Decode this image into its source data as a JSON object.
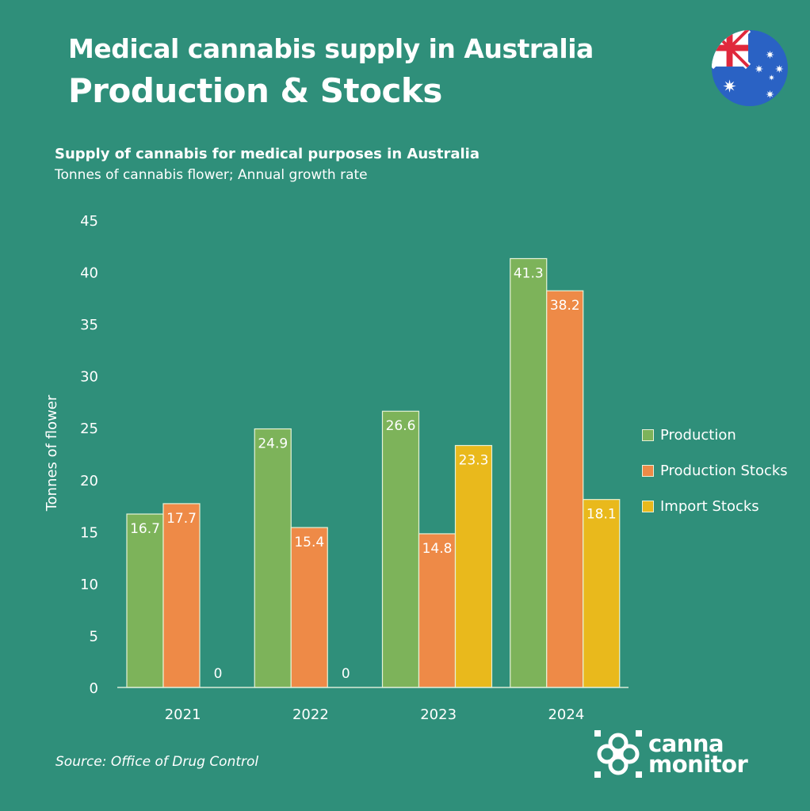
{
  "header": {
    "title": "Medical cannabis supply in Australia",
    "subtitle": "Production & Stocks",
    "flag_icon": "australia-flag-icon"
  },
  "chart_header": {
    "title": "Supply of cannabis for medical purposes in Australia",
    "subtitle": "Tonnes of cannabis flower; Annual growth rate"
  },
  "colors": {
    "background": "#2f8f7a",
    "production": "#7db35a",
    "production_stocks": "#ee8a47",
    "import_stocks": "#e9b91c",
    "text": "#ffffff"
  },
  "chart_data": {
    "type": "bar",
    "title": "Supply of cannabis for medical purposes in Australia",
    "subtitle": "Tonnes of cannabis flower; Annual growth rate",
    "xlabel": "",
    "ylabel": "Tonnes of flower",
    "ylim": [
      0,
      45
    ],
    "yticks": [
      0,
      5,
      10,
      15,
      20,
      25,
      30,
      35,
      40,
      45
    ],
    "grid": false,
    "legend_position": "right",
    "categories": [
      "2021",
      "2022",
      "2023",
      "2024"
    ],
    "series": [
      {
        "name": "Production",
        "color": "#7db35a",
        "values": [
          16.7,
          24.9,
          26.6,
          41.3
        ],
        "labels": [
          "16.7",
          "24.9",
          "26.6",
          "41.3"
        ]
      },
      {
        "name": "Production Stocks",
        "color": "#ee8a47",
        "values": [
          17.7,
          15.4,
          14.8,
          38.2
        ],
        "labels": [
          "17.7",
          "15.4",
          "14.8",
          "38.2"
        ]
      },
      {
        "name": "Import Stocks",
        "color": "#e9b91c",
        "values": [
          0,
          0,
          23.3,
          18.1
        ],
        "labels": [
          "0",
          "0",
          "23.3",
          "18.1"
        ]
      }
    ]
  },
  "legend": {
    "items": [
      {
        "label": "Production"
      },
      {
        "label": "Production Stocks"
      },
      {
        "label": "Import Stocks"
      }
    ]
  },
  "footer": {
    "source": "Source: Office of Drug Control",
    "logo_line1": "canna",
    "logo_line2": "monitor"
  }
}
